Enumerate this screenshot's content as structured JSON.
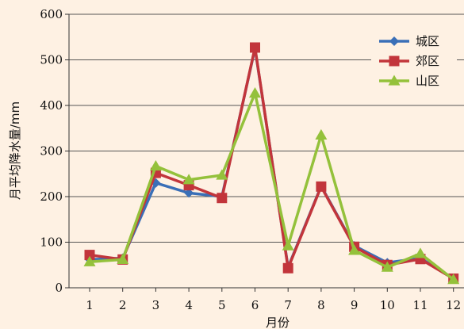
{
  "chart_data": {
    "type": "line",
    "xlabel": "月份",
    "ylabel": "月平均降水量/mm",
    "categories": [
      "1",
      "2",
      "3",
      "4",
      "5",
      "6",
      "7",
      "8",
      "9",
      "10",
      "11",
      "12"
    ],
    "yticks": [
      "0",
      "100",
      "200",
      "300",
      "400",
      "500",
      "600"
    ],
    "ylim": [
      0,
      600
    ],
    "grid": true,
    "legend_position": "top-right",
    "series": [
      {
        "name": "城区",
        "color": "#3a6fb7",
        "marker": "diamond",
        "values": [
          62,
          65,
          230,
          208,
          200,
          525,
          45,
          223,
          92,
          55,
          65,
          20
        ]
      },
      {
        "name": "郊区",
        "color": "#c2353b",
        "marker": "square",
        "values": [
          72,
          62,
          252,
          225,
          197,
          527,
          43,
          222,
          90,
          50,
          63,
          20
        ]
      },
      {
        "name": "山区",
        "color": "#94c13b",
        "marker": "triangle",
        "values": [
          57,
          62,
          267,
          237,
          247,
          427,
          92,
          335,
          82,
          45,
          75,
          18
        ]
      }
    ]
  }
}
